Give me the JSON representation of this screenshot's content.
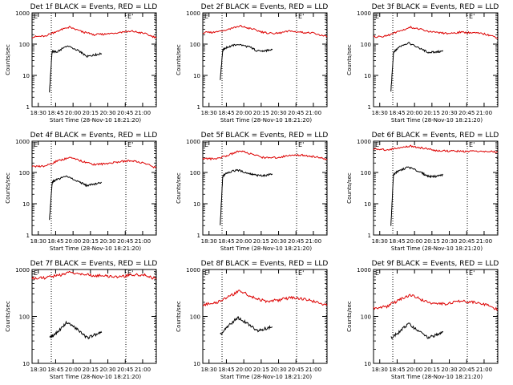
{
  "colors": {
    "events": "#000000",
    "lld": "#dd0000",
    "axis": "#000000",
    "background": "#ffffff"
  },
  "common": {
    "ylabel": "Counts/sec",
    "xlabel": "Start Time (28-Nov-10 18:21:20)",
    "xticks": [
      "18:30",
      "18:45",
      "20:00",
      "20:15",
      "20:30",
      "20:45",
      "21:00"
    ],
    "yticks": [
      "1",
      "10",
      "100",
      "1000"
    ],
    "markers": [
      "E",
      "E'"
    ]
  },
  "chart_data": [
    {
      "type": "line",
      "title": "Det 1f BLACK = Events, RED = LLD",
      "yscale": "log",
      "ylim": [
        1,
        1000
      ],
      "series": [
        {
          "name": "Events",
          "x": [
            0.14,
            0.16,
            0.165,
            0.2,
            0.28,
            0.38,
            0.44,
            0.5,
            0.56
          ],
          "y": [
            3,
            50,
            60,
            55,
            90,
            60,
            40,
            45,
            50
          ]
        },
        {
          "name": "LLD",
          "x": [
            0.0,
            0.1,
            0.2,
            0.3,
            0.4,
            0.5,
            0.6,
            0.7,
            0.8,
            0.9,
            1.0
          ],
          "y": [
            170,
            180,
            260,
            350,
            250,
            200,
            210,
            240,
            260,
            220,
            160
          ]
        }
      ]
    },
    {
      "type": "line",
      "title": "Det 2f BLACK = Events, RED = LLD",
      "yscale": "log",
      "ylim": [
        1,
        1000
      ],
      "series": [
        {
          "name": "Events",
          "x": [
            0.14,
            0.16,
            0.165,
            0.2,
            0.28,
            0.38,
            0.44,
            0.5,
            0.56
          ],
          "y": [
            7,
            60,
            70,
            80,
            100,
            80,
            60,
            60,
            70
          ]
        },
        {
          "name": "LLD",
          "x": [
            0.0,
            0.1,
            0.2,
            0.3,
            0.4,
            0.5,
            0.6,
            0.7,
            0.8,
            0.9,
            1.0
          ],
          "y": [
            230,
            240,
            300,
            380,
            300,
            230,
            220,
            260,
            240,
            220,
            170
          ]
        }
      ]
    },
    {
      "type": "line",
      "title": "Det 3f BLACK = Events, RED = LLD",
      "yscale": "log",
      "ylim": [
        1,
        1000
      ],
      "series": [
        {
          "name": "Events",
          "x": [
            0.14,
            0.16,
            0.165,
            0.2,
            0.28,
            0.38,
            0.44,
            0.5,
            0.56
          ],
          "y": [
            3,
            50,
            55,
            80,
            110,
            70,
            55,
            55,
            60
          ]
        },
        {
          "name": "LLD",
          "x": [
            0.0,
            0.1,
            0.2,
            0.3,
            0.4,
            0.5,
            0.6,
            0.7,
            0.8,
            0.9,
            1.0
          ],
          "y": [
            170,
            180,
            250,
            350,
            280,
            230,
            220,
            240,
            230,
            210,
            160
          ]
        }
      ]
    },
    {
      "type": "line",
      "title": "Det 4f BLACK = Events, RED = LLD",
      "yscale": "log",
      "ylim": [
        1,
        1000
      ],
      "series": [
        {
          "name": "Events",
          "x": [
            0.14,
            0.16,
            0.165,
            0.2,
            0.28,
            0.38,
            0.44,
            0.5,
            0.56
          ],
          "y": [
            3,
            40,
            50,
            60,
            75,
            50,
            38,
            42,
            48
          ]
        },
        {
          "name": "LLD",
          "x": [
            0.0,
            0.1,
            0.2,
            0.3,
            0.4,
            0.5,
            0.6,
            0.7,
            0.8,
            0.9,
            1.0
          ],
          "y": [
            150,
            160,
            230,
            300,
            230,
            180,
            190,
            220,
            240,
            200,
            140
          ]
        }
      ]
    },
    {
      "type": "line",
      "title": "Det 5f BLACK = Events, RED = LLD",
      "yscale": "log",
      "ylim": [
        1,
        1000
      ],
      "series": [
        {
          "name": "Events",
          "x": [
            0.14,
            0.16,
            0.165,
            0.2,
            0.28,
            0.38,
            0.44,
            0.5,
            0.56
          ],
          "y": [
            2,
            70,
            80,
            100,
            120,
            90,
            80,
            80,
            90
          ]
        },
        {
          "name": "LLD",
          "x": [
            0.0,
            0.1,
            0.2,
            0.3,
            0.4,
            0.5,
            0.6,
            0.7,
            0.8,
            0.9,
            1.0
          ],
          "y": [
            280,
            270,
            350,
            500,
            380,
            290,
            300,
            350,
            360,
            320,
            260
          ]
        }
      ]
    },
    {
      "type": "line",
      "title": "Det 6f BLACK = Events, RED = LLD",
      "yscale": "log",
      "ylim": [
        1,
        1000
      ],
      "series": [
        {
          "name": "Events",
          "x": [
            0.14,
            0.16,
            0.165,
            0.2,
            0.28,
            0.38,
            0.44,
            0.5,
            0.56
          ],
          "y": [
            2,
            80,
            90,
            110,
            150,
            100,
            75,
            75,
            85
          ]
        },
        {
          "name": "LLD",
          "x": [
            0.0,
            0.1,
            0.2,
            0.3,
            0.4,
            0.5,
            0.6,
            0.7,
            0.8,
            0.9,
            1.0
          ],
          "y": [
            550,
            530,
            600,
            700,
            600,
            500,
            480,
            480,
            470,
            470,
            460
          ]
        }
      ]
    },
    {
      "type": "line",
      "title": "Det 7f BLACK = Events, RED = LLD",
      "yscale": "log",
      "ylim": [
        10,
        1000
      ],
      "series": [
        {
          "name": "Events",
          "x": [
            0.14,
            0.2,
            0.28,
            0.36,
            0.44,
            0.5,
            0.56
          ],
          "y": [
            35,
            45,
            75,
            55,
            35,
            40,
            45
          ]
        },
        {
          "name": "LLD",
          "x": [
            0.0,
            0.1,
            0.2,
            0.3,
            0.4,
            0.5,
            0.6,
            0.7,
            0.8,
            0.9,
            1.0
          ],
          "y": [
            650,
            660,
            750,
            850,
            800,
            750,
            720,
            700,
            760,
            780,
            620
          ]
        }
      ]
    },
    {
      "type": "line",
      "title": "Det 8f BLACK = Events, RED = LLD",
      "yscale": "log",
      "ylim": [
        10,
        1000
      ],
      "series": [
        {
          "name": "Events",
          "x": [
            0.14,
            0.2,
            0.28,
            0.36,
            0.44,
            0.5,
            0.56
          ],
          "y": [
            40,
            60,
            95,
            70,
            50,
            55,
            60
          ]
        },
        {
          "name": "LLD",
          "x": [
            0.0,
            0.1,
            0.2,
            0.3,
            0.4,
            0.5,
            0.6,
            0.7,
            0.8,
            0.9,
            1.0
          ],
          "y": [
            180,
            190,
            260,
            350,
            260,
            210,
            220,
            250,
            240,
            210,
            170
          ]
        }
      ]
    },
    {
      "type": "line",
      "title": "Det 9f BLACK = Events, RED = LLD",
      "yscale": "log",
      "ylim": [
        10,
        1000
      ],
      "series": [
        {
          "name": "Events",
          "x": [
            0.14,
            0.2,
            0.28,
            0.36,
            0.44,
            0.5,
            0.56
          ],
          "y": [
            35,
            45,
            70,
            50,
            35,
            40,
            48
          ]
        },
        {
          "name": "LLD",
          "x": [
            0.0,
            0.1,
            0.2,
            0.3,
            0.4,
            0.5,
            0.6,
            0.7,
            0.8,
            0.9,
            1.0
          ],
          "y": [
            150,
            160,
            220,
            290,
            220,
            180,
            190,
            210,
            200,
            180,
            140
          ]
        }
      ]
    }
  ]
}
